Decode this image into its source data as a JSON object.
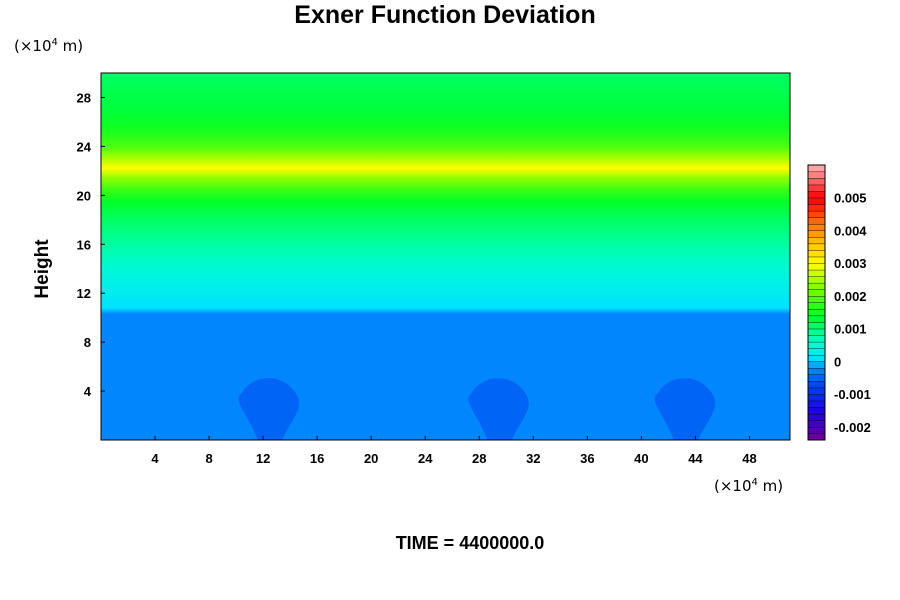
{
  "chart_data": {
    "type": "heatmap",
    "title": "Exner Function Deviation",
    "ylabel": "Height",
    "xunit_prefix": "(×10",
    "xunit_exp": "4",
    "xunit_suffix": " m)",
    "yunit_prefix": "(×10",
    "yunit_exp": "4",
    "yunit_suffix": " m)",
    "time_label": "TIME = 4400000.0",
    "xlim": [
      0,
      51
    ],
    "ylim": [
      0,
      30
    ],
    "xticks": [
      4,
      8,
      12,
      16,
      20,
      24,
      28,
      32,
      36,
      40,
      44,
      48
    ],
    "yticks": [
      4,
      8,
      12,
      16,
      20,
      24,
      28
    ],
    "profile": [
      {
        "z": 0.0,
        "value": -0.00025
      },
      {
        "z": 10.3,
        "value": -0.00025
      },
      {
        "z": 10.8,
        "value": 0.0001
      },
      {
        "z": 12.5,
        "value": 0.0003
      },
      {
        "z": 14.0,
        "value": 0.0005
      },
      {
        "z": 16.0,
        "value": 0.0008
      },
      {
        "z": 18.0,
        "value": 0.0011
      },
      {
        "z": 19.5,
        "value": 0.0014
      },
      {
        "z": 20.5,
        "value": 0.0018
      },
      {
        "z": 21.5,
        "value": 0.0024
      },
      {
        "z": 22.2,
        "value": 0.003
      },
      {
        "z": 23.0,
        "value": 0.0025
      },
      {
        "z": 24.0,
        "value": 0.0019
      },
      {
        "z": 25.5,
        "value": 0.0015
      },
      {
        "z": 27.0,
        "value": 0.0013
      },
      {
        "z": 30.0,
        "value": 0.0011
      }
    ],
    "blobs": [
      {
        "x": 12.5,
        "value": -0.0005,
        "top": 5.3
      },
      {
        "x": 29.5,
        "value": -0.0005,
        "top": 5.3
      },
      {
        "x": 43.3,
        "value": -0.0005,
        "top": 5.3
      }
    ],
    "colorbar": {
      "min": -0.0024,
      "max": 0.006,
      "step": 0.0002,
      "ticks": [
        {
          "value": 0.005,
          "label": "0.005"
        },
        {
          "value": 0.004,
          "label": "0.004"
        },
        {
          "value": 0.003,
          "label": "0.003"
        },
        {
          "value": 0.002,
          "label": "0.002"
        },
        {
          "value": 0.001,
          "label": "0.001"
        },
        {
          "value": 0,
          "label": "0"
        },
        {
          "value": -0.001,
          "label": "-0.001"
        },
        {
          "value": -0.002,
          "label": "-0.002"
        }
      ]
    },
    "legend": "right",
    "grid": false
  }
}
